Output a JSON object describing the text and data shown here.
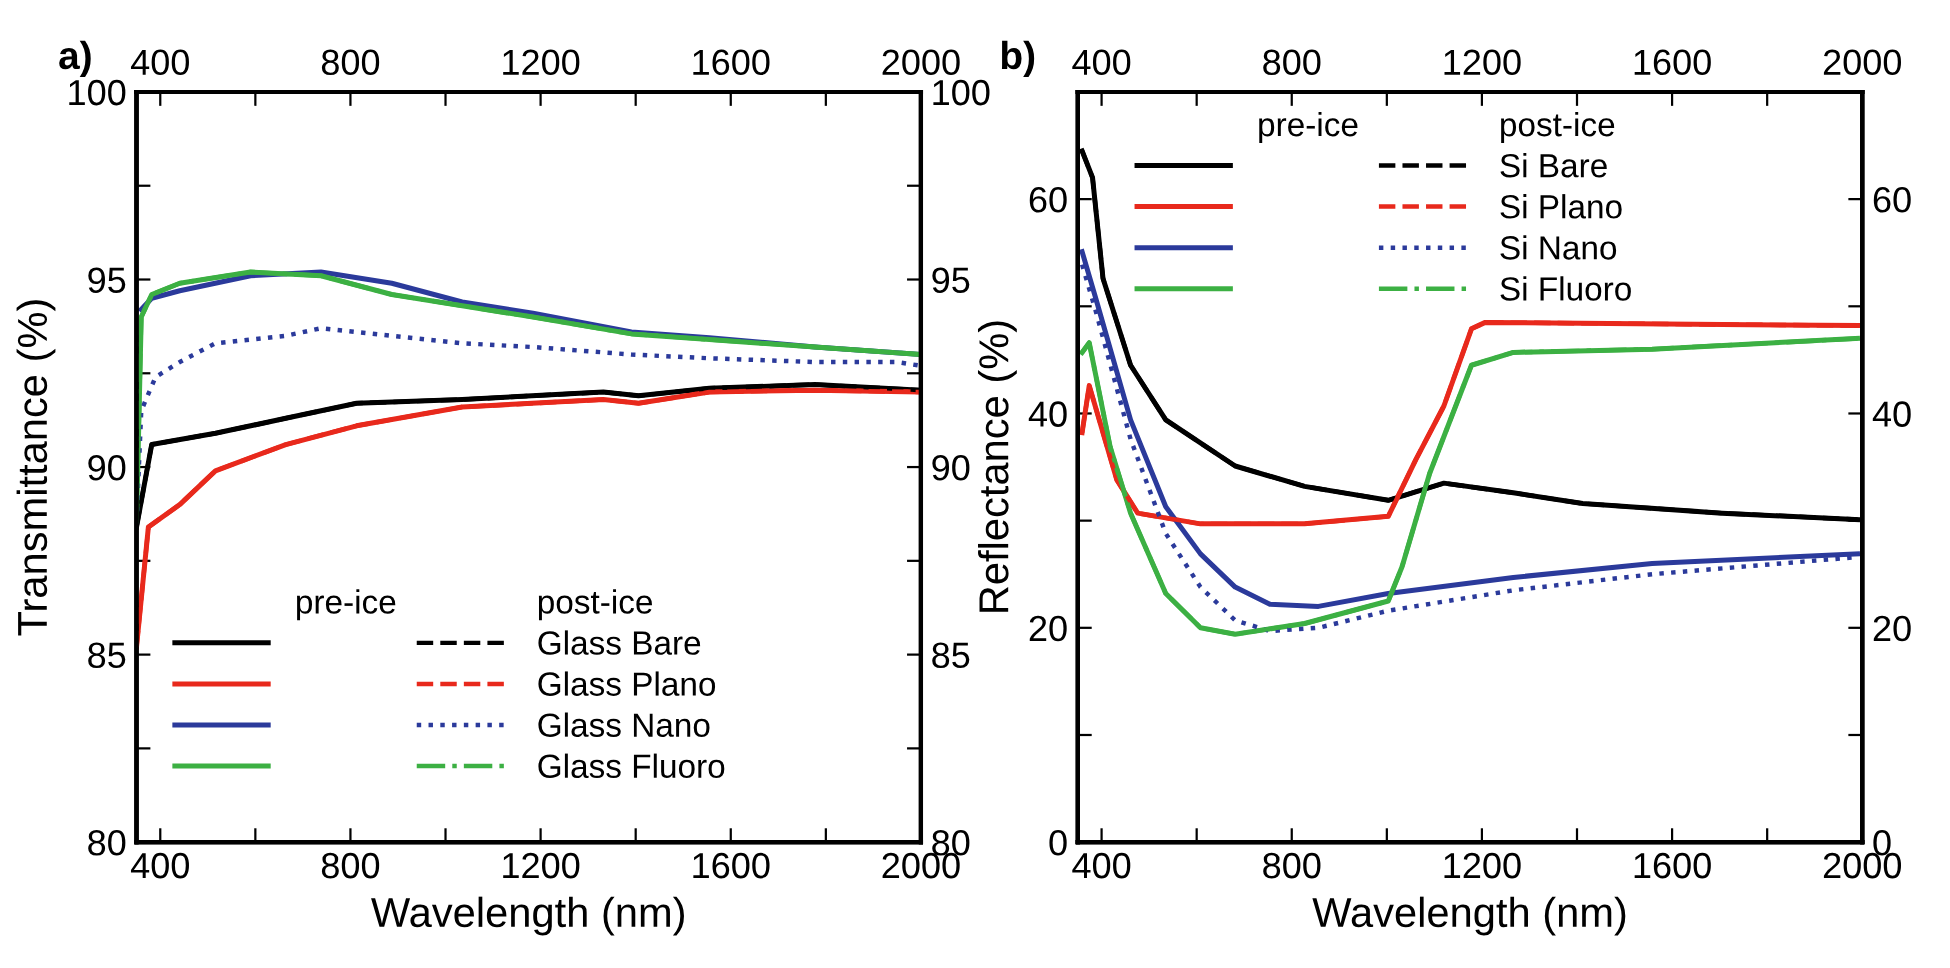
{
  "chart_data": [
    {
      "type": "line",
      "title": "a)",
      "xlabel": "Wavelength (nm)",
      "ylabel": "Transmittance (%)",
      "xlim": [
        350,
        2000
      ],
      "ylim": [
        80,
        100
      ],
      "y2lim": [
        80,
        100
      ],
      "x2lim": [
        350,
        2000
      ],
      "xticks": [
        400,
        {
          "value": 600,
          "label": null
        },
        800,
        {
          "value": 1000,
          "label": null
        },
        1200,
        {
          "value": 1400,
          "label": null
        },
        1600,
        {
          "value": 1800,
          "label": null
        },
        2000
      ],
      "x2ticks": [
        400,
        {
          "value": 600,
          "label": null
        },
        800,
        {
          "value": 1000,
          "label": null
        },
        1200,
        {
          "value": 1400,
          "label": null
        },
        1600,
        {
          "value": 1800,
          "label": null
        },
        2000
      ],
      "yticks": [
        80,
        {
          "value": 82.5,
          "label": null
        },
        85,
        {
          "value": 87.5,
          "label": null
        },
        90,
        {
          "value": 92.5,
          "label": null
        },
        95,
        {
          "value": 97.5,
          "label": null
        },
        100
      ],
      "y2ticks": [
        80,
        {
          "value": 82.5,
          "label": null
        },
        85,
        {
          "value": 87.5,
          "label": null
        },
        90,
        {
          "value": 92.5,
          "label": null
        },
        95,
        {
          "value": 97.5,
          "label": null
        },
        100
      ],
      "grid": false,
      "legend": "bottom",
      "annotations": [
        "pre-ice",
        "post-ice"
      ],
      "series": [
        {
          "color": "#000000",
          "line_style": "solid",
          "x": [
            350,
            382,
            516,
            664,
            813,
            1035,
            1332,
            1406,
            1555,
            1777,
            2000
          ],
          "values": [
            88.4,
            90.6,
            90.9,
            91.3,
            91.7,
            91.8,
            92.0,
            91.9,
            92.1,
            92.2,
            92.05
          ]
        },
        {
          "color": "#e8291c",
          "line_style": "solid",
          "x": [
            350,
            375,
            441,
            516,
            664,
            813,
            1035,
            1332,
            1406,
            1555,
            1777,
            2000
          ],
          "values": [
            85.2,
            88.4,
            89.0,
            89.9,
            90.6,
            91.1,
            91.6,
            91.8,
            91.7,
            92.0,
            92.05,
            92.0
          ]
        },
        {
          "color": "#2b3a9b",
          "line_style": "solid",
          "x": [
            360,
            382,
            441,
            590,
            738,
            887,
            1035,
            1184,
            1391,
            1555,
            1777,
            2000
          ],
          "values": [
            94.2,
            94.5,
            94.7,
            95.1,
            95.2,
            94.9,
            94.4,
            94.1,
            93.6,
            93.45,
            93.2,
            93.0
          ]
        },
        {
          "color": "#3cb043",
          "line_style": "solid",
          "x": [
            350,
            360,
            382,
            441,
            590,
            738,
            887,
            1035,
            1184,
            1391,
            1555,
            1777,
            2000
          ],
          "values": [
            88.5,
            94.0,
            94.6,
            94.9,
            95.2,
            95.1,
            94.6,
            94.3,
            94.0,
            93.55,
            93.4,
            93.2,
            93.0
          ]
        },
        {
          "name": "Glass Bare",
          "color": "#000000",
          "line_style": "dashed",
          "x": [
            350,
            382,
            516,
            664,
            813,
            1035,
            1332,
            1406,
            1555,
            1777,
            2000
          ],
          "values": [
            88.4,
            90.6,
            90.9,
            91.3,
            91.7,
            91.8,
            92.0,
            91.9,
            92.1,
            92.2,
            92.05
          ]
        },
        {
          "name": "Glass Plano",
          "color": "#e8291c",
          "line_style": "dashed",
          "x": [
            350,
            375,
            441,
            516,
            664,
            813,
            1035,
            1332,
            1406,
            1555,
            1777,
            2000
          ],
          "values": [
            85.2,
            88.4,
            89.0,
            89.9,
            90.6,
            91.1,
            91.6,
            91.8,
            91.7,
            92.0,
            92.05,
            92.0
          ]
        },
        {
          "name": "Glass Nano",
          "color": "#2b3a9b",
          "line_style": "dotted",
          "x": [
            350,
            360,
            390,
            441,
            516,
            664,
            738,
            813,
            887,
            1035,
            1184,
            1391,
            1555,
            1777,
            1950,
            2000
          ],
          "values": [
            88.5,
            91.5,
            92.4,
            92.8,
            93.3,
            93.5,
            93.7,
            93.6,
            93.5,
            93.3,
            93.2,
            93.0,
            92.9,
            92.8,
            92.8,
            92.7
          ]
        },
        {
          "name": "Glass Fluoro",
          "color": "#3cb043",
          "line_style": "dashdot",
          "x": [
            350,
            360,
            382,
            441,
            590,
            738,
            887,
            1035,
            1184,
            1391,
            1555,
            1777,
            2000
          ],
          "values": [
            88.5,
            94.0,
            94.6,
            94.9,
            95.2,
            95.1,
            94.6,
            94.3,
            94.0,
            93.55,
            93.4,
            93.2,
            93.0
          ]
        }
      ]
    },
    {
      "type": "line",
      "title": "b)",
      "xlabel": "Wavelength (nm)",
      "ylabel": "Reflectance (%)",
      "xlim": [
        350,
        2000
      ],
      "ylim": [
        0,
        70
      ],
      "y2lim": [
        0,
        70
      ],
      "x2lim": [
        350,
        2000
      ],
      "xticks": [
        400,
        {
          "value": 600,
          "label": null
        },
        800,
        {
          "value": 1000,
          "label": null
        },
        1200,
        {
          "value": 1400,
          "label": null
        },
        1600,
        {
          "value": 1800,
          "label": null
        },
        2000
      ],
      "x2ticks": [
        400,
        {
          "value": 600,
          "label": null
        },
        800,
        {
          "value": 1000,
          "label": null
        },
        1200,
        {
          "value": 1400,
          "label": null
        },
        1600,
        {
          "value": 1800,
          "label": null
        },
        2000
      ],
      "yticks": [
        0,
        {
          "value": 10,
          "label": null
        },
        20,
        {
          "value": 30,
          "label": null
        },
        40,
        {
          "value": 50,
          "label": null
        },
        60
      ],
      "y2ticks": [
        0,
        {
          "value": 10,
          "label": null
        },
        20,
        {
          "value": 30,
          "label": null
        },
        40,
        {
          "value": 50,
          "label": null
        },
        60
      ],
      "grid": false,
      "legend": "top left",
      "annotations": [
        "pre-ice",
        "post-ice"
      ],
      "series": [
        {
          "color": "#000000",
          "line_style": "solid",
          "x": [
            359,
            381,
            403,
            461,
            535,
            681,
            827,
            1003,
            1120,
            1266,
            1412,
            1705,
            1990
          ],
          "values": [
            64.5,
            62,
            52.6,
            44.5,
            39.4,
            35.1,
            33.2,
            31.9,
            33.5,
            32.6,
            31.6,
            30.7,
            30.1
          ]
        },
        {
          "color": "#e8291c",
          "line_style": "solid",
          "x": [
            359,
            374,
            403,
            432,
            476,
            608,
            827,
            1003,
            1061,
            1120,
            1178,
            1207,
            1705,
            1990
          ],
          "values": [
            38.2,
            42.6,
            38.2,
            33.8,
            30.7,
            29.7,
            29.7,
            30.4,
            35.7,
            40.7,
            47.9,
            48.5,
            48.3,
            48.2
          ]
        },
        {
          "color": "#2b3a9b",
          "line_style": "solid",
          "x": [
            359,
            388,
            461,
            535,
            608,
            681,
            754,
            856,
            1003,
            1266,
            1558,
            1990
          ],
          "values": [
            55.1,
            50.7,
            39.4,
            31.3,
            26.9,
            23.8,
            22.2,
            22.0,
            23.2,
            24.7,
            26.0,
            26.9
          ]
        },
        {
          "color": "#3cb043",
          "line_style": "solid",
          "x": [
            359,
            374,
            418,
            461,
            535,
            608,
            681,
            827,
            1003,
            1032,
            1090,
            1178,
            1266,
            1558,
            1990
          ],
          "values": [
            45.7,
            46.6,
            36.9,
            30.7,
            23.2,
            20.0,
            19.4,
            20.4,
            22.5,
            25.7,
            34.4,
            44.5,
            45.7,
            46.0,
            47.0
          ]
        },
        {
          "name": "Si Bare",
          "color": "#000000",
          "line_style": "dashed",
          "x": [
            359,
            381,
            403,
            461,
            535,
            681,
            827,
            1003,
            1120,
            1266,
            1412,
            1705,
            1990
          ],
          "values": [
            64.5,
            62,
            52.6,
            44.5,
            39.4,
            35.1,
            33.2,
            31.9,
            33.5,
            32.6,
            31.6,
            30.7,
            30.1
          ]
        },
        {
          "name": "Si Plano",
          "color": "#e8291c",
          "line_style": "dashed",
          "x": [
            359,
            374,
            403,
            432,
            476,
            608,
            827,
            1003,
            1061,
            1120,
            1178,
            1207,
            1705,
            1990
          ],
          "values": [
            38.2,
            42.6,
            38.2,
            33.8,
            30.7,
            29.7,
            29.7,
            30.4,
            35.7,
            40.7,
            47.9,
            48.5,
            48.3,
            48.2
          ]
        },
        {
          "name": "Si Nano",
          "color": "#2b3a9b",
          "line_style": "dotted",
          "x": [
            359,
            388,
            461,
            535,
            608,
            681,
            754,
            856,
            1003,
            1266,
            1558,
            1990
          ],
          "values": [
            53.9,
            49.5,
            37.6,
            28.8,
            23.8,
            20.7,
            19.7,
            20.0,
            21.6,
            23.5,
            25.0,
            26.6
          ]
        },
        {
          "name": "Si Fluoro",
          "color": "#3cb043",
          "line_style": "dashdot",
          "x": [
            359,
            374,
            418,
            461,
            535,
            608,
            681,
            827,
            1003,
            1032,
            1090,
            1178,
            1266,
            1558,
            1990
          ],
          "values": [
            45.7,
            46.6,
            36.9,
            30.7,
            23.2,
            20.0,
            19.4,
            20.4,
            22.5,
            25.7,
            34.4,
            44.5,
            45.7,
            46.0,
            47.0
          ]
        }
      ]
    }
  ]
}
